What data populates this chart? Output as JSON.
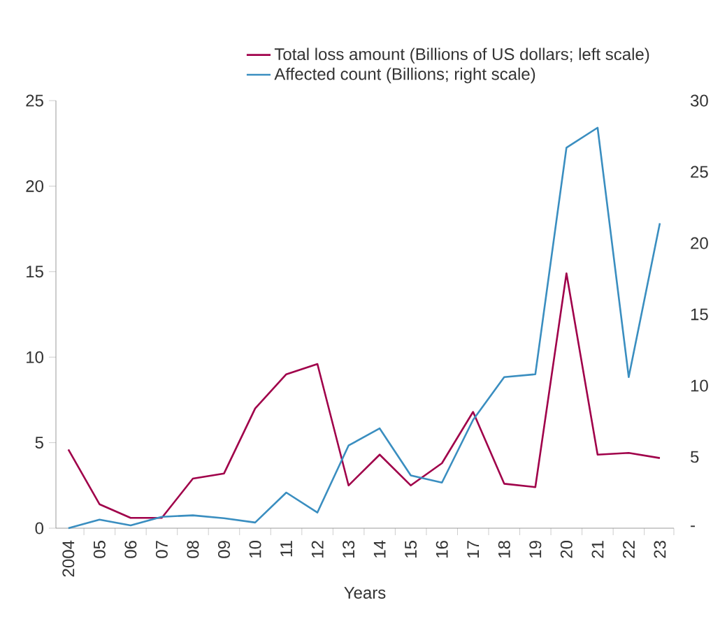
{
  "chart_data": {
    "type": "line",
    "xlabel": "Years",
    "categories": [
      "2004",
      "05",
      "06",
      "07",
      "08",
      "09",
      "10",
      "11",
      "12",
      "13",
      "14",
      "15",
      "16",
      "17",
      "18",
      "19",
      "20",
      "21",
      "22",
      "23"
    ],
    "ylim": [
      0,
      25
    ],
    "yticks": [
      0,
      5,
      10,
      15,
      20,
      25
    ],
    "y2lim": [
      0,
      30
    ],
    "y2ticks": [
      {
        "value": 0,
        "label": "-"
      },
      5,
      10,
      15,
      20,
      25,
      30
    ],
    "legend": "top",
    "marker": "none",
    "line_style": "solid",
    "grid": false,
    "series": [
      {
        "name": "Total loss amount (Billions of US dollars; left scale)",
        "color": "#a0004a",
        "values": [
          4.6,
          1.4,
          0.6,
          0.6,
          2.9,
          3.2,
          7.0,
          9.0,
          9.6,
          2.5,
          4.3,
          2.5,
          3.8,
          6.8,
          2.6,
          2.4,
          14.9,
          4.3,
          4.4,
          4.1
        ]
      },
      {
        "name": "Affected count (Billions; right scale)",
        "color": "#3a8ec0",
        "axis": "y2",
        "values": [
          0,
          0.6,
          0.2,
          0.8,
          0.9,
          0.7,
          0.4,
          2.5,
          1.1,
          5.8,
          7.0,
          3.7,
          3.2,
          7.6,
          10.6,
          10.8,
          26.7,
          28.1,
          10.6,
          21.4
        ]
      }
    ]
  }
}
